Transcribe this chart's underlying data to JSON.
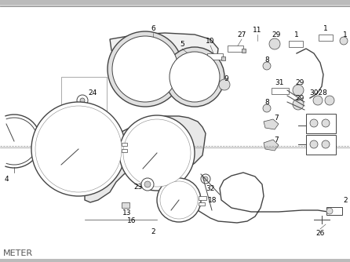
{
  "label": "METER",
  "label_fontsize": 8,
  "background_color": "#ffffff",
  "line_color": "#444444",
  "light_line_color": "#888888",
  "figsize": [
    4.46,
    3.34
  ],
  "dpi": 100
}
